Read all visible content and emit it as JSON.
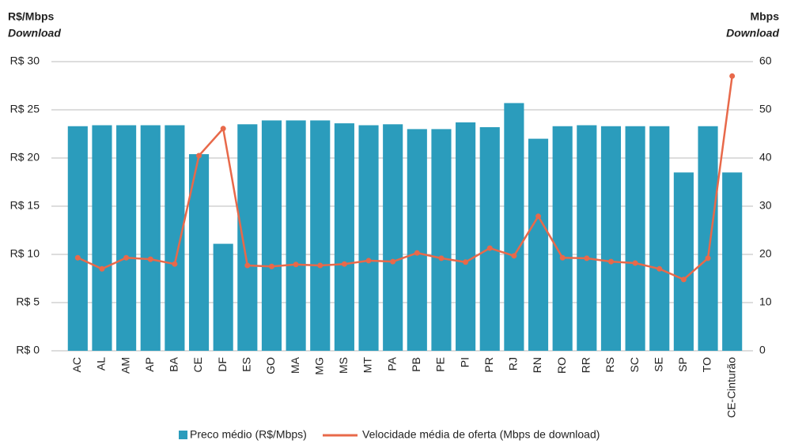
{
  "chart_data": {
    "type": "bar_line",
    "y_label": [
      "R$/Mbps",
      "Download"
    ],
    "y2_label": [
      "Mbps",
      "Download"
    ],
    "categories": [
      "AC",
      "AL",
      "AM",
      "AP",
      "BA",
      "CE",
      "DF",
      "ES",
      "GO",
      "MA",
      "MG",
      "MS",
      "MT",
      "PA",
      "PB",
      "PE",
      "PI",
      "PR",
      "RJ",
      "RN",
      "RO",
      "RR",
      "RS",
      "SC",
      "SE",
      "SP",
      "TO",
      "CE-Cinturão"
    ],
    "series": [
      {
        "name": "Preco médio (R$/Mbps)",
        "type": "bar",
        "color": "#2b9cbc",
        "values": [
          23.3,
          23.4,
          23.4,
          23.4,
          23.4,
          20.4,
          11.1,
          23.5,
          23.9,
          23.9,
          23.9,
          23.6,
          23.4,
          23.5,
          23.0,
          23.0,
          23.7,
          23.2,
          25.7,
          22.0,
          23.3,
          23.4,
          23.3,
          23.3,
          23.3,
          18.5,
          23.3,
          18.5
        ]
      },
      {
        "name": "Velocidade média de oferta (Mbps de download)",
        "type": "line",
        "axis": "y2",
        "color": "#e8694a",
        "values": [
          19.3,
          17.0,
          19.3,
          19.0,
          18.0,
          40.5,
          46.1,
          17.7,
          17.5,
          17.9,
          17.7,
          18.0,
          18.7,
          18.5,
          20.3,
          19.2,
          18.4,
          21.3,
          19.7,
          27.9,
          19.3,
          19.2,
          18.5,
          18.2,
          17.0,
          14.8,
          19.2,
          57.0
        ]
      }
    ],
    "ylim": [
      0,
      30
    ],
    "yticks": [
      {
        "value": 0,
        "label": "R$ 0"
      },
      {
        "value": 5,
        "label": "R$ 5"
      },
      {
        "value": 10,
        "label": "R$ 10"
      },
      {
        "value": 15,
        "label": "R$ 15"
      },
      {
        "value": 20,
        "label": "R$ 20"
      },
      {
        "value": 25,
        "label": "R$ 25"
      },
      {
        "value": 30,
        "label": "R$ 30"
      }
    ],
    "y2lim": [
      0,
      60
    ],
    "y2ticks": [
      0,
      10,
      20,
      30,
      40,
      50,
      60
    ],
    "grid": true
  }
}
